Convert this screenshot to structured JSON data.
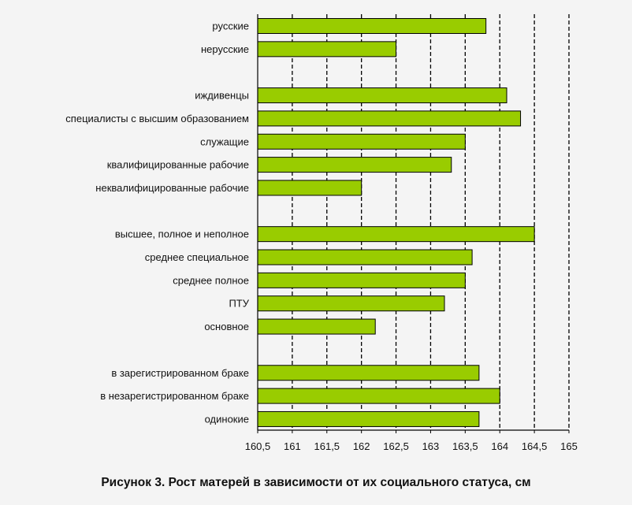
{
  "caption": "Рисунок 3. Рост матерей в зависимости от их социального статуса, см",
  "chart_data": {
    "type": "bar",
    "orientation": "horizontal",
    "title": "Рисунок 3. Рост матерей в зависимости от их социального статуса, см",
    "xlabel": "",
    "ylabel": "",
    "xlim": [
      160.5,
      165
    ],
    "xticks": [
      "160,5",
      "161",
      "161,5",
      "162",
      "162,5",
      "163",
      "163,5",
      "164",
      "164,5",
      "165"
    ],
    "grid": "vertical dashed",
    "legend": "none",
    "colors": {
      "bar_fill": "#99cc00",
      "bar_stroke": "#000000",
      "gridline": "#000000",
      "background": "#f4f4f4"
    },
    "groups": [
      {
        "categories": [
          "русские",
          "нерусские"
        ],
        "values": [
          163.8,
          162.5
        ]
      },
      {
        "categories": [
          "иждивенцы",
          "специалисты с высшим образованием",
          "служащие",
          "квалифицированные рабочие",
          "неквалифицированные рабочие"
        ],
        "values": [
          164.1,
          164.3,
          163.5,
          163.3,
          162.0
        ]
      },
      {
        "categories": [
          "высшее, полное и неполное",
          "среднее специальное",
          "среднее полное",
          "ПТУ",
          "основное"
        ],
        "values": [
          164.5,
          163.6,
          163.5,
          163.2,
          162.2
        ]
      },
      {
        "categories": [
          "в зарегистрированном браке",
          "в незарегистрированном браке",
          "одинокие"
        ],
        "values": [
          163.7,
          164.0,
          163.7
        ]
      }
    ]
  }
}
